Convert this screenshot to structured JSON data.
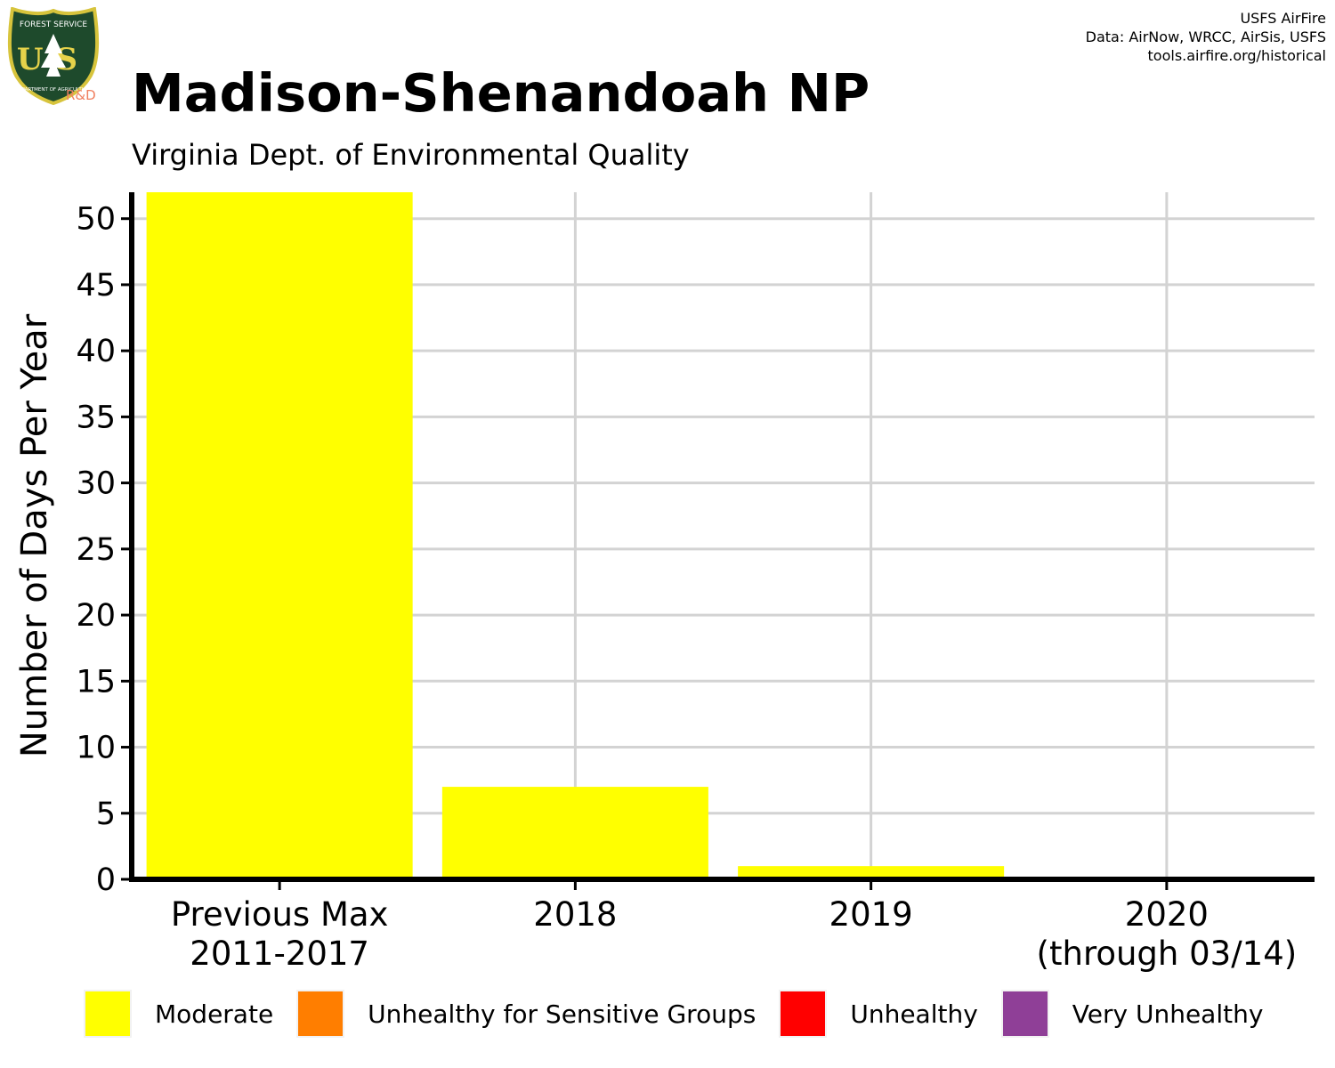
{
  "header": {
    "title": "Madison-Shenandoah NP",
    "subtitle": "Virginia Dept. of Environmental Quality",
    "credits": [
      "USFS AirFire",
      "Data: AirNow, WRCC, AirSis, USFS",
      "tools.airfire.org/historical"
    ]
  },
  "logo": {
    "text_top": "FOREST SERVICE",
    "text_main": "US",
    "text_bottom": "DEPARTMENT OF AGRICULTURE",
    "badge": "R&D"
  },
  "chart_data": {
    "type": "bar",
    "title": "Madison-Shenandoah NP",
    "subtitle": "Virginia Dept. of Environmental Quality",
    "xlabel": "",
    "ylabel": "Number of Days Per Year",
    "categories": [
      [
        "Previous Max",
        "2011-2017"
      ],
      [
        "2018"
      ],
      [
        "2019"
      ],
      [
        "2020",
        "(through 03/14)"
      ]
    ],
    "series": [
      {
        "name": "Moderate",
        "color": "#FFFF00",
        "values": [
          52,
          7,
          1,
          0
        ]
      },
      {
        "name": "Unhealthy for Sensitive Groups",
        "color": "#FF7E00",
        "values": [
          0,
          0,
          0,
          0
        ]
      },
      {
        "name": "Unhealthy",
        "color": "#FF0000",
        "values": [
          0,
          0,
          0,
          0
        ]
      },
      {
        "name": "Very Unhealthy",
        "color": "#8F3F97",
        "values": [
          0,
          0,
          0,
          0
        ]
      }
    ],
    "ylim": [
      0,
      52
    ],
    "yticks": [
      0,
      5,
      10,
      15,
      20,
      25,
      30,
      35,
      40,
      45,
      50
    ],
    "grid": true,
    "legend_position": "bottom"
  }
}
